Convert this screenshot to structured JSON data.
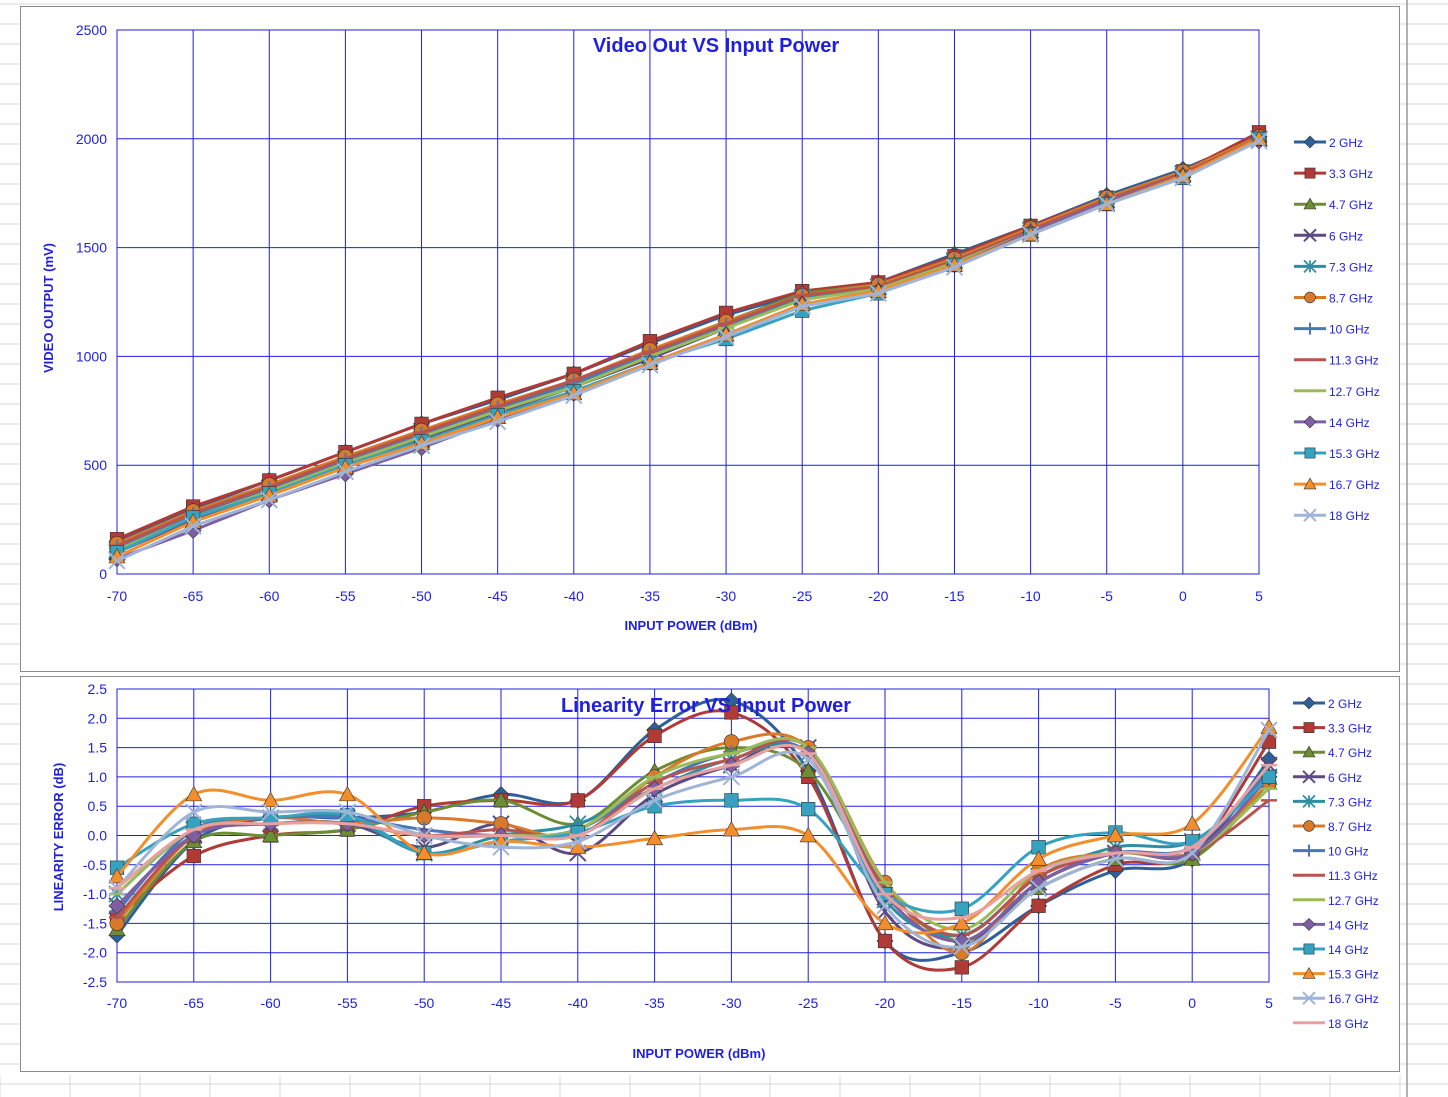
{
  "charts": [
    {
      "title": "Video Out VS Input Power",
      "xlabel": "INPUT POWER (dBm)",
      "ylabel": "VIDEO OUTPUT (mV)"
    },
    {
      "title": "Linearity Error VS Input Power",
      "xlabel": "INPUT POWER (dBm)",
      "ylabel": "LINEARITY ERROR (dB)"
    }
  ],
  "chart_data": [
    {
      "type": "line",
      "title": "Video Out VS Input Power",
      "xlabel": "INPUT POWER (dBm)",
      "ylabel": "VIDEO OUTPUT (mV)",
      "x": [
        -70,
        -65,
        -60,
        -55,
        -50,
        -45,
        -40,
        -35,
        -30,
        -25,
        -20,
        -15,
        -10,
        -5,
        0,
        5
      ],
      "xlim": [
        -70,
        5
      ],
      "ylim": [
        0,
        2500
      ],
      "yticks": [
        0,
        500,
        1000,
        1500,
        2000,
        2500
      ],
      "grid": true,
      "legend": "right",
      "series": [
        {
          "name": "2 GHz",
          "color": "#2e5f99",
          "marker": "diamond",
          "values": [
            150,
            300,
            430,
            560,
            690,
            800,
            920,
            1060,
            1190,
            1290,
            1340,
            1470,
            1600,
            1740,
            1860,
            2010
          ]
        },
        {
          "name": "3.3 GHz",
          "color": "#b03a35",
          "marker": "square",
          "values": [
            160,
            310,
            430,
            560,
            690,
            810,
            920,
            1070,
            1200,
            1300,
            1340,
            1460,
            1600,
            1730,
            1850,
            2030
          ]
        },
        {
          "name": "4.7 GHz",
          "color": "#6e8c34",
          "marker": "triangle",
          "values": [
            130,
            280,
            400,
            530,
            650,
            770,
            890,
            1020,
            1160,
            1290,
            1330,
            1450,
            1590,
            1730,
            1850,
            2010
          ]
        },
        {
          "name": "6 GHz",
          "color": "#5e4a82",
          "marker": "x",
          "values": [
            100,
            250,
            370,
            500,
            620,
            740,
            860,
            990,
            1130,
            1270,
            1320,
            1440,
            1580,
            1720,
            1840,
            2000
          ]
        },
        {
          "name": "7.3 GHz",
          "color": "#2d8fa3",
          "marker": "asterisk",
          "values": [
            110,
            260,
            380,
            510,
            630,
            750,
            870,
            1000,
            1130,
            1270,
            1320,
            1440,
            1580,
            1720,
            1840,
            2000
          ]
        },
        {
          "name": "8.7 GHz",
          "color": "#d9792a",
          "marker": "circle",
          "values": [
            140,
            290,
            410,
            540,
            660,
            780,
            890,
            1030,
            1160,
            1280,
            1330,
            1450,
            1590,
            1730,
            1850,
            2010
          ]
        },
        {
          "name": "10 GHz",
          "color": "#4878b8",
          "marker": "plus",
          "values": [
            120,
            270,
            390,
            520,
            640,
            760,
            880,
            1010,
            1140,
            1280,
            1320,
            1440,
            1580,
            1720,
            1840,
            2000
          ]
        },
        {
          "name": "11.3 GHz",
          "color": "#b85450",
          "marker": "dash",
          "values": [
            130,
            280,
            400,
            530,
            650,
            770,
            890,
            1020,
            1150,
            1280,
            1320,
            1440,
            1580,
            1720,
            1840,
            2000
          ]
        },
        {
          "name": "12.7 GHz",
          "color": "#9bbb59",
          "marker": "dash",
          "values": [
            110,
            260,
            380,
            510,
            630,
            750,
            860,
            1000,
            1130,
            1260,
            1310,
            1430,
            1570,
            1710,
            1830,
            1990
          ]
        },
        {
          "name": "14 GHz",
          "color": "#7e5fa3",
          "marker": "diamond",
          "values": [
            70,
            200,
            340,
            460,
            580,
            710,
            830,
            970,
            1100,
            1240,
            1300,
            1420,
            1570,
            1710,
            1830,
            1990
          ]
        },
        {
          "name": "15.3 GHz",
          "color": "#36a2c0",
          "marker": "square",
          "values": [
            100,
            260,
            370,
            500,
            610,
            730,
            840,
            970,
            1080,
            1210,
            1290,
            1420,
            1560,
            1700,
            1820,
            2000
          ]
        },
        {
          "name": "16.7 GHz",
          "color": "#f28e2b",
          "marker": "triangle",
          "values": [
            80,
            240,
            360,
            490,
            600,
            720,
            830,
            970,
            1100,
            1240,
            1300,
            1420,
            1560,
            1700,
            1830,
            2000
          ]
        },
        {
          "name": "18 GHz",
          "color": "#9fb4d6",
          "marker": "x",
          "values": [
            60,
            220,
            340,
            470,
            590,
            700,
            820,
            960,
            1090,
            1230,
            1290,
            1410,
            1560,
            1700,
            1820,
            1990
          ]
        }
      ]
    },
    {
      "type": "line",
      "title": "Linearity Error VS Input Power",
      "xlabel": "INPUT POWER (dBm)",
      "ylabel": "LINEARITY ERROR (dB)",
      "x": [
        -70,
        -65,
        -60,
        -55,
        -50,
        -45,
        -40,
        -35,
        -30,
        -25,
        -20,
        -15,
        -10,
        -5,
        0,
        5
      ],
      "xlim": [
        -70,
        5
      ],
      "ylim": [
        -2.5,
        2.5
      ],
      "yticks": [
        -2.5,
        -2.0,
        -1.5,
        -1.0,
        -0.5,
        0.0,
        0.5,
        1.0,
        1.5,
        2.0,
        2.5
      ],
      "grid": true,
      "legend": "right",
      "series": [
        {
          "name": "2 GHz",
          "color": "#2e5f99",
          "marker": "diamond",
          "values": [
            -1.7,
            -0.1,
            0.3,
            0.3,
            0.4,
            0.7,
            0.6,
            1.8,
            2.3,
            1.1,
            -1.8,
            -2.0,
            -1.2,
            -0.6,
            -0.4,
            1.3
          ]
        },
        {
          "name": "3.3 GHz",
          "color": "#b03a35",
          "marker": "square",
          "values": [
            -1.4,
            -0.35,
            0.0,
            0.1,
            0.5,
            0.6,
            0.6,
            1.7,
            2.1,
            1.0,
            -1.8,
            -2.25,
            -1.2,
            -0.5,
            -0.3,
            1.6
          ]
        },
        {
          "name": "4.7 GHz",
          "color": "#6e8c34",
          "marker": "triangle",
          "values": [
            -1.6,
            -0.1,
            0.0,
            0.1,
            0.4,
            0.6,
            0.2,
            1.1,
            1.5,
            1.1,
            -0.9,
            -1.8,
            -0.9,
            -0.4,
            -0.4,
            0.9
          ]
        },
        {
          "name": "6 GHz",
          "color": "#5e4a82",
          "marker": "x",
          "values": [
            -1.2,
            0.0,
            0.2,
            0.2,
            -0.2,
            0.2,
            -0.3,
            0.7,
            1.2,
            1.5,
            -1.3,
            -1.9,
            -0.8,
            -0.3,
            -0.3,
            1.2
          ]
        },
        {
          "name": "7.3 GHz",
          "color": "#2d8fa3",
          "marker": "asterisk",
          "values": [
            -1.0,
            0.1,
            0.3,
            0.3,
            -0.3,
            0.0,
            0.2,
            0.8,
            1.3,
            1.4,
            -1.1,
            -1.7,
            -0.7,
            -0.2,
            -0.1,
            1.0
          ]
        },
        {
          "name": "8.7 GHz",
          "color": "#d9792a",
          "marker": "circle",
          "values": [
            -1.5,
            0.0,
            0.3,
            0.2,
            0.3,
            0.2,
            0.0,
            1.0,
            1.6,
            1.5,
            -0.8,
            -2.0,
            -0.6,
            -0.3,
            -0.3,
            0.9
          ]
        },
        {
          "name": "10 GHz",
          "color": "#4878b8",
          "marker": "plus",
          "values": [
            -1.3,
            0.1,
            0.3,
            0.3,
            0.1,
            0.0,
            0.1,
            0.9,
            1.4,
            1.4,
            -1.0,
            -1.8,
            -0.8,
            -0.3,
            -0.2,
            1.1
          ]
        },
        {
          "name": "11.3 GHz",
          "color": "#b85450",
          "marker": "dash",
          "values": [
            -1.4,
            0.0,
            0.2,
            0.2,
            0.0,
            0.1,
            0.0,
            0.9,
            1.3,
            1.5,
            -0.9,
            -1.7,
            -0.7,
            -0.3,
            -0.3,
            0.6
          ]
        },
        {
          "name": "12.7 GHz",
          "color": "#9bbb59",
          "marker": "dash",
          "values": [
            -1.0,
            0.1,
            0.2,
            0.2,
            0.0,
            0.0,
            0.1,
            1.0,
            1.4,
            1.5,
            -0.8,
            -1.6,
            -0.6,
            -0.3,
            -0.3,
            0.8
          ]
        },
        {
          "name": "14 GHz",
          "color": "#7e5fa3",
          "marker": "diamond",
          "values": [
            -1.2,
            0.0,
            0.2,
            0.2,
            0.0,
            0.0,
            0.0,
            0.8,
            1.2,
            1.4,
            -1.0,
            -1.8,
            -0.8,
            -0.3,
            -0.3,
            1.0
          ]
        },
        {
          "name": "14 GHz",
          "color": "#36a2c0",
          "marker": "square",
          "values": [
            -0.55,
            0.2,
            0.3,
            0.35,
            -0.3,
            -0.1,
            0.05,
            0.5,
            0.6,
            0.45,
            -1.0,
            -1.25,
            -0.2,
            0.05,
            -0.1,
            1.0
          ]
        },
        {
          "name": "15.3 GHz",
          "color": "#f28e2b",
          "marker": "triangle",
          "values": [
            -0.7,
            0.7,
            0.6,
            0.7,
            -0.3,
            -0.1,
            -0.2,
            -0.05,
            0.1,
            0.0,
            -1.5,
            -1.5,
            -0.4,
            0.0,
            0.2,
            1.85
          ]
        },
        {
          "name": "16.7 GHz",
          "color": "#9fb4d6",
          "marker": "x",
          "values": [
            -0.9,
            0.4,
            0.4,
            0.4,
            0.0,
            -0.2,
            -0.1,
            0.6,
            1.0,
            1.3,
            -1.2,
            -1.9,
            -0.9,
            -0.4,
            -0.3,
            1.8
          ]
        },
        {
          "name": "18 GHz",
          "color": "#e8a0a0",
          "marker": "dash",
          "values": [
            -0.9,
            0.1,
            0.2,
            0.2,
            0.0,
            0.0,
            0.0,
            0.8,
            1.2,
            1.4,
            -1.0,
            -1.4,
            -0.6,
            -0.3,
            -0.2,
            1.2
          ]
        }
      ]
    }
  ]
}
